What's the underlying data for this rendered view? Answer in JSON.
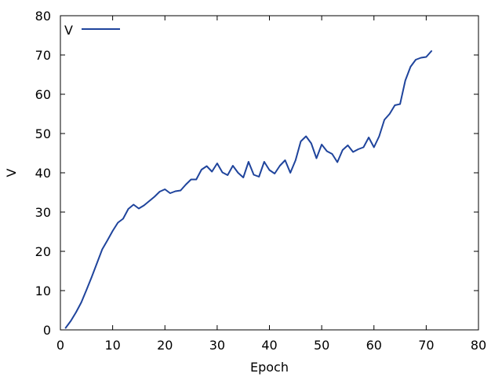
{
  "chart_data": {
    "type": "line",
    "xlabel": "Epoch",
    "ylabel": "V",
    "xlim": [
      0,
      80
    ],
    "ylim": [
      0,
      80
    ],
    "xticks": [
      0,
      10,
      20,
      30,
      40,
      50,
      60,
      70,
      80
    ],
    "yticks": [
      0,
      10,
      20,
      30,
      40,
      50,
      60,
      70,
      80
    ],
    "grid": false,
    "legend_position": "top-left",
    "series": [
      {
        "name": "V",
        "color": "#1f449c",
        "x": [
          1,
          2,
          3,
          4,
          5,
          6,
          7,
          8,
          9,
          10,
          11,
          12,
          13,
          14,
          15,
          16,
          17,
          18,
          19,
          20,
          21,
          22,
          23,
          24,
          25,
          26,
          27,
          28,
          29,
          30,
          31,
          32,
          33,
          34,
          35,
          36,
          37,
          38,
          39,
          40,
          41,
          42,
          43,
          44,
          45,
          46,
          47,
          48,
          49,
          50,
          51,
          52,
          53,
          54,
          55,
          56,
          57,
          58,
          59,
          60,
          61,
          62,
          63,
          64,
          65,
          66,
          67,
          68,
          69,
          70,
          71
        ],
        "y": [
          0.5,
          2.3,
          4.5,
          7.0,
          10.2,
          13.5,
          17.0,
          20.5,
          22.8,
          25.2,
          27.3,
          28.3,
          30.8,
          31.9,
          30.9,
          31.7,
          32.8,
          33.9,
          35.2,
          35.8,
          34.8,
          35.3,
          35.5,
          37.0,
          38.3,
          38.3,
          40.8,
          41.7,
          40.3,
          42.4,
          40.1,
          39.4,
          41.8,
          40.0,
          38.8,
          42.8,
          39.5,
          39.0,
          42.8,
          40.7,
          39.8,
          41.8,
          43.2,
          40.0,
          43.2,
          48.0,
          49.3,
          47.5,
          43.7,
          47.2,
          45.5,
          44.8,
          42.7,
          45.8,
          47.0,
          45.3,
          46.0,
          46.5,
          49.0,
          46.5,
          49.3,
          53.5,
          55.0,
          57.2,
          57.5,
          63.5,
          67.0,
          68.8,
          69.3,
          69.5,
          71.0
        ]
      }
    ]
  }
}
